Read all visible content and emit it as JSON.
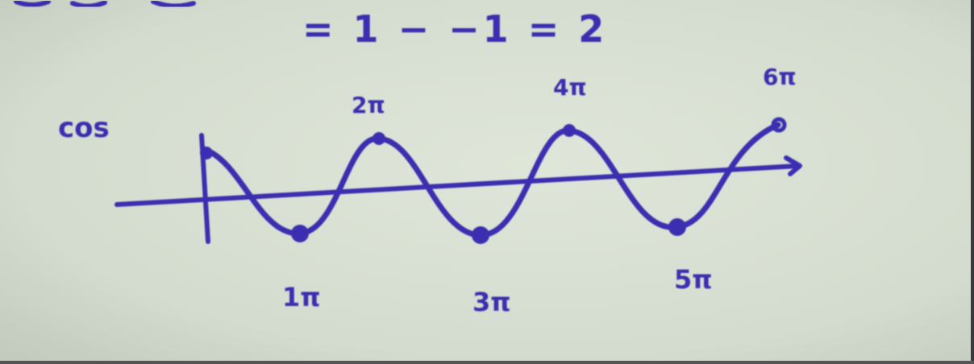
{
  "board": {
    "background": "#d6ded0",
    "ink": "#3b2fb0"
  },
  "equation": {
    "text": "= 1 − −1 = 2"
  },
  "function_label": "cos",
  "peak_labels": [
    "2π",
    "4π",
    "6π"
  ],
  "trough_labels": [
    "1π",
    "3π",
    "5π"
  ]
}
